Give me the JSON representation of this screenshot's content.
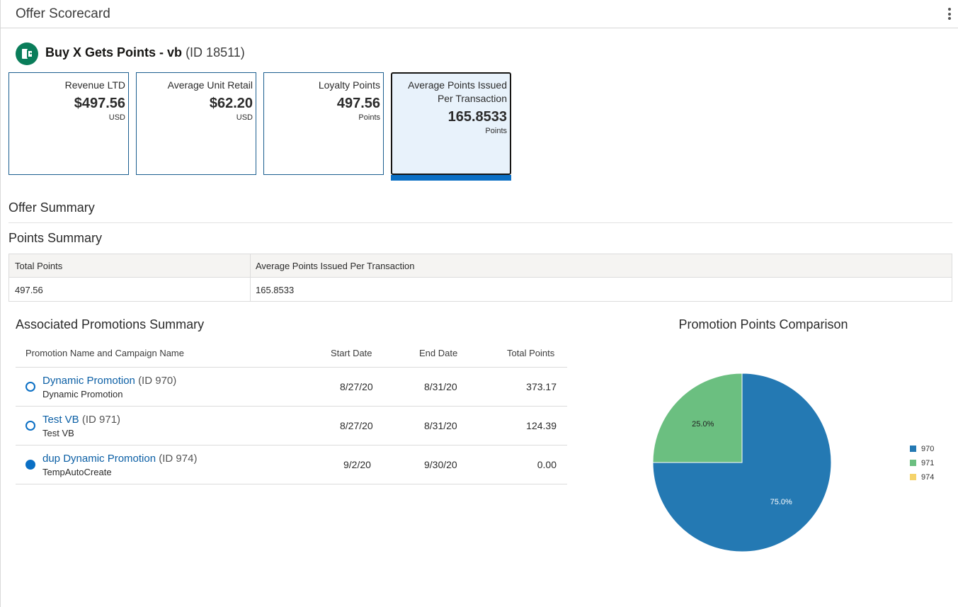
{
  "header": {
    "title": "Offer Scorecard"
  },
  "offer": {
    "name": "Buy X Gets Points - vb",
    "id_text": "(ID 18511)"
  },
  "kpis": [
    {
      "label": "Revenue LTD",
      "value": "$497.56",
      "unit": "USD"
    },
    {
      "label": "Average Unit Retail",
      "value": "$62.20",
      "unit": "USD"
    },
    {
      "label": "Loyalty Points",
      "value": "497.56",
      "unit": "Points"
    },
    {
      "label_line1": "Average Points Issued",
      "label_line2": "Per Transaction",
      "value": "165.8533",
      "unit": "Points",
      "selected": true
    }
  ],
  "sections": {
    "offer_summary": "Offer Summary",
    "points_summary": "Points Summary"
  },
  "points_summary_table": {
    "headers": [
      "Total Points",
      "Average Points Issued Per Transaction"
    ],
    "row": [
      "497.56",
      "165.8533"
    ]
  },
  "associated_promotions": {
    "title": "Associated Promotions Summary",
    "headers": {
      "name": "Promotion Name and Campaign Name",
      "start": "Start Date",
      "end": "End Date",
      "total": "Total Points"
    },
    "rows": [
      {
        "name": "Dynamic Promotion",
        "id": "(ID 970)",
        "campaign": "Dynamic Promotion",
        "start": "8/27/20",
        "end": "8/31/20",
        "total": "373.17",
        "selected": false
      },
      {
        "name": "Test VB",
        "id": "(ID 971)",
        "campaign": "Test VB",
        "start": "8/27/20",
        "end": "8/31/20",
        "total": "124.39",
        "selected": false
      },
      {
        "name": "dup Dynamic Promotion",
        "id": "(ID 974)",
        "campaign": "TempAutoCreate",
        "start": "9/2/20",
        "end": "9/30/20",
        "total": "0.00",
        "selected": true
      }
    ]
  },
  "chart_data": {
    "type": "pie",
    "title": "Promotion Points Comparison",
    "categories": [
      "970",
      "971",
      "974"
    ],
    "values": [
      75.0,
      25.0,
      0.0
    ],
    "labels": [
      "75.0%",
      "25.0%",
      ""
    ],
    "colors": [
      "#2479b3",
      "#6bbf80",
      "#f5d36a"
    ],
    "legend": "right"
  },
  "icons": {
    "offer": "offer-icon",
    "menu": "kebab-menu-icon"
  }
}
